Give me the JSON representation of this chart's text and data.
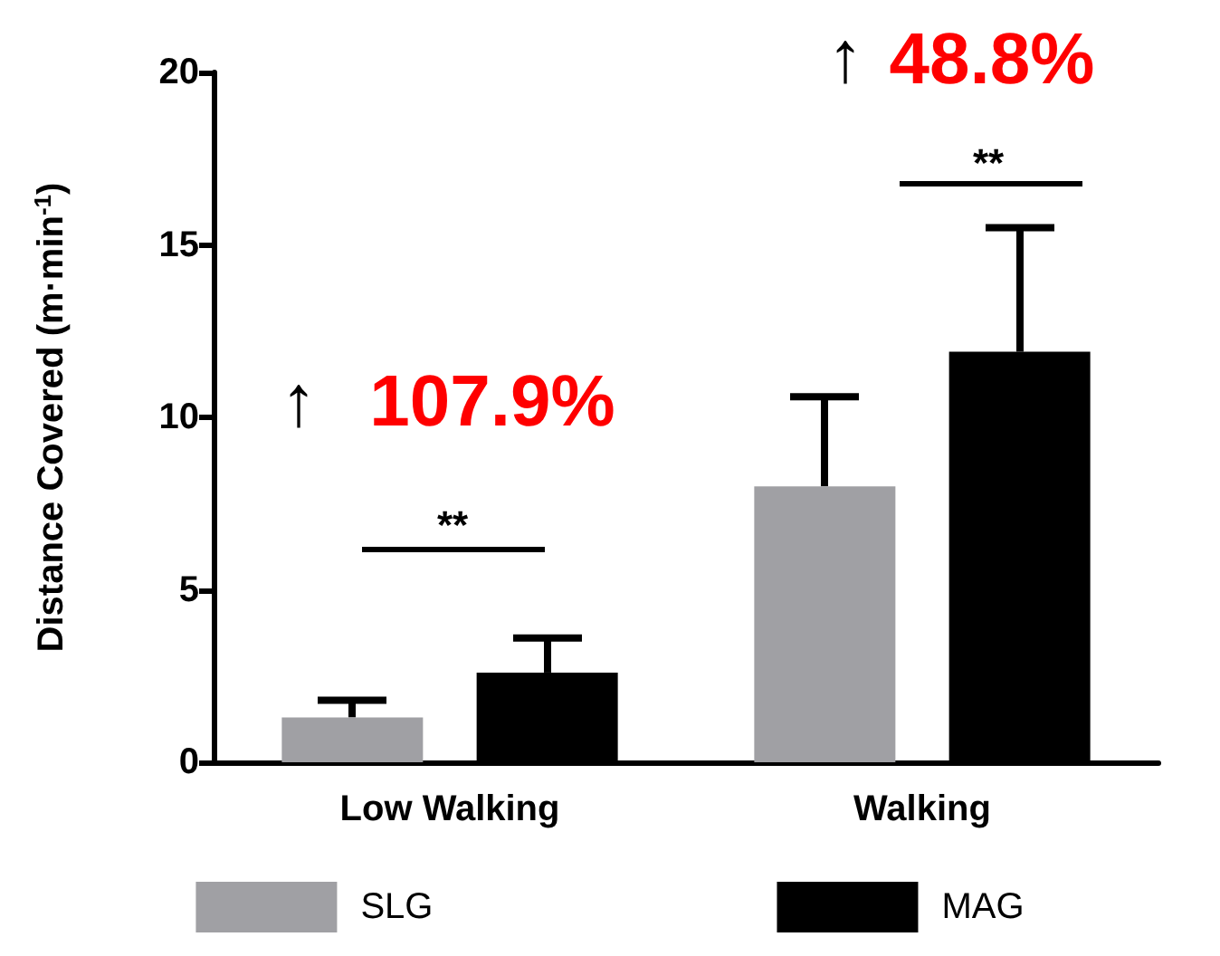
{
  "chart_data": {
    "type": "bar",
    "ylabel": "Distance Covered (m·min$^{-1}$)",
    "categories": [
      "Low Walking",
      "Walking"
    ],
    "series": [
      {
        "name": "SLG",
        "color": "#a0a0a4",
        "values": [
          1.3,
          8.0
        ],
        "errors": [
          [
            1.3,
            1.8
          ],
          [
            8.0,
            10.6
          ]
        ]
      },
      {
        "name": "MAG",
        "color": "#000000",
        "values": [
          2.6,
          11.9
        ],
        "errors": [
          [
            2.6,
            3.6
          ],
          [
            11.9,
            15.5
          ]
        ]
      }
    ],
    "ylim": [
      0,
      20
    ],
    "yticks": [
      0,
      5,
      10,
      15,
      20
    ],
    "grid": false,
    "legend": "bottom",
    "annotations": [
      "↑",
      "107.9%",
      "↑",
      "48.8%",
      "**",
      "**"
    ]
  }
}
